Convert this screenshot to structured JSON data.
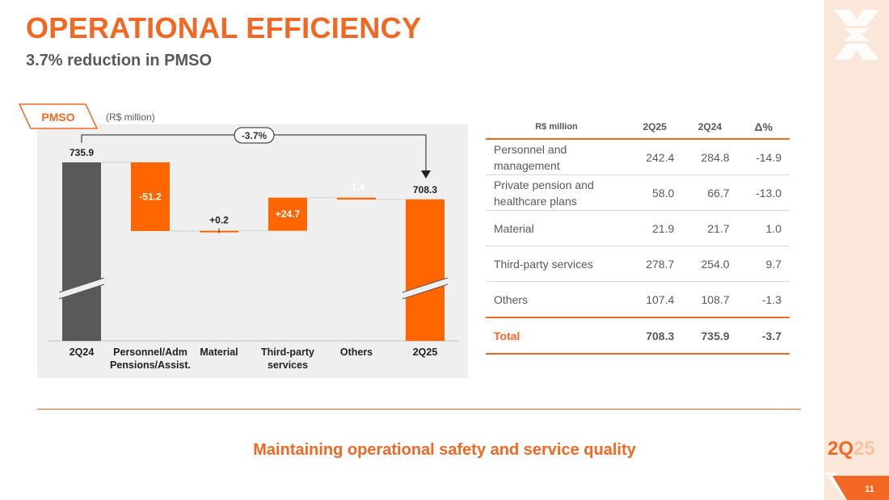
{
  "header": {
    "title": "OPERATIONAL EFFICIENCY",
    "subtitle": "3.7% reduction in PMSO"
  },
  "chart_panel": {
    "tag": "PMSO",
    "unit": "(R$ million)",
    "change_label": "-3.7%"
  },
  "chart_data": {
    "type": "bar",
    "subtype": "waterfall",
    "title": "PMSO",
    "unit": "R$ million",
    "categories": [
      "2Q24",
      "Personnel/Adm Pensions/Assist.",
      "Material",
      "Third-party services",
      "Others",
      "2Q25"
    ],
    "category_lines": [
      [
        "2Q24"
      ],
      [
        "Personnel/Adm",
        "Pensions/Assist."
      ],
      [
        "Material"
      ],
      [
        "Third-party",
        "services"
      ],
      [
        "Others"
      ],
      [
        "2Q25"
      ]
    ],
    "values": [
      735.9,
      -51.2,
      0.2,
      24.7,
      -1.4,
      708.3
    ],
    "labels": [
      "735.9",
      "-51.2",
      "+0.2",
      "+24.7",
      "-1.4",
      "708.3"
    ],
    "kinds": [
      "total",
      "delta",
      "delta",
      "delta",
      "delta",
      "total"
    ],
    "axis_break": true,
    "annotation": "-3.7%",
    "colors": {
      "start_total": "#595959",
      "delta": "#ff6600",
      "end_total": "#ff6600"
    }
  },
  "table": {
    "headers": [
      "R$ million",
      "2Q25",
      "2Q24",
      "Δ%"
    ],
    "rows": [
      {
        "label": "Personnel and management",
        "q25": "242.4",
        "q24": "284.8",
        "delta": "-14.9"
      },
      {
        "label": "Private pension and healthcare plans",
        "q25": "58.0",
        "q24": "66.7",
        "delta": "-13.0"
      },
      {
        "label": "Material",
        "q25": "21.9",
        "q24": "21.7",
        "delta": "1.0"
      },
      {
        "label": "Third-party services",
        "q25": "278.7",
        "q24": "254.0",
        "delta": "9.7"
      },
      {
        "label": "Others",
        "q25": "107.4",
        "q24": "108.7",
        "delta": "-1.3"
      }
    ],
    "total": {
      "label": "Total",
      "q25": "708.3",
      "q24": "735.9",
      "delta": "-3.7"
    }
  },
  "footer": {
    "tagline": "Maintaining operational safety and service quality",
    "quarter_a": "2Q",
    "quarter_b": "25",
    "page_number": "11"
  },
  "colors": {
    "accent": "#f26722",
    "bar_gray": "#595959",
    "sidebar": "#fbe7da"
  }
}
